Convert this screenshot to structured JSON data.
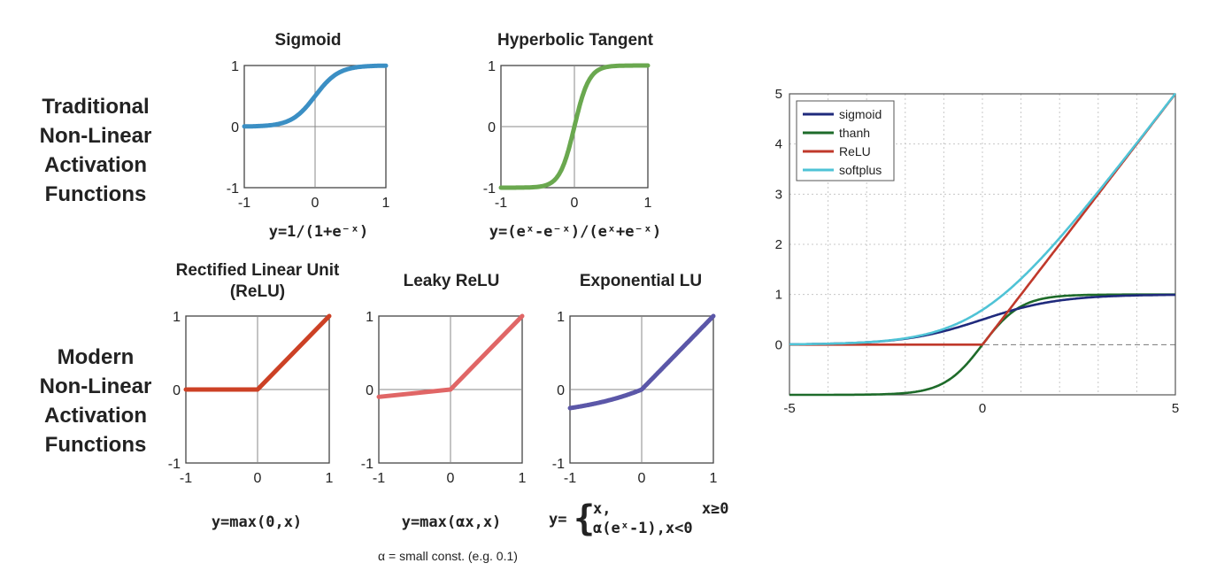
{
  "row_labels": {
    "traditional": [
      "Traditional",
      "Non-Linear",
      "Activation",
      "Functions"
    ],
    "modern": [
      "Modern",
      "Non-Linear",
      "Activation",
      "Functions"
    ]
  },
  "colors": {
    "sigmoid": "#3b8fc4",
    "tanh": "#6aa84f",
    "relu": "#cc4125",
    "leaky": "#e06666",
    "elu": "#5b57a8",
    "cmp_sigmoid": "#1f2a7c",
    "cmp_tanh": "#1e6b2a",
    "cmp_relu": "#c0392b",
    "cmp_softplus": "#4fc3d6"
  },
  "chart_data": [
    {
      "id": "sigmoid",
      "type": "line",
      "title": "Sigmoid",
      "formula": "y=1/(1+e⁻ˣ)",
      "xlim": [
        -1,
        1
      ],
      "ylim": [
        -1,
        1
      ],
      "x_ticks": [
        "-1",
        "0",
        "1"
      ],
      "y_ticks": [
        "1",
        "0",
        "-1"
      ],
      "series": [
        {
          "function": "sigmoid",
          "color_key": "sigmoid"
        }
      ]
    },
    {
      "id": "tanh",
      "type": "line",
      "title": "Hyperbolic Tangent",
      "formula": "y=(eˣ-e⁻ˣ)/(eˣ+e⁻ˣ)",
      "xlim": [
        -1,
        1
      ],
      "ylim": [
        -1,
        1
      ],
      "x_ticks": [
        "-1",
        "0",
        "1"
      ],
      "y_ticks": [
        "1",
        "0",
        "-1"
      ],
      "series": [
        {
          "function": "tanh",
          "color_key": "tanh"
        }
      ]
    },
    {
      "id": "relu",
      "type": "line",
      "title": "Rectified Linear Unit",
      "title2": "(ReLU)",
      "formula": "y=max(0,x)",
      "xlim": [
        -1,
        1
      ],
      "ylim": [
        -1,
        1
      ],
      "x_ticks": [
        "-1",
        "0",
        "1"
      ],
      "y_ticks": [
        "1",
        "0",
        "-1"
      ],
      "series": [
        {
          "function": "relu",
          "color_key": "relu",
          "points": [
            [
              -1,
              0
            ],
            [
              0,
              0
            ],
            [
              1,
              1
            ]
          ]
        }
      ]
    },
    {
      "id": "leaky",
      "type": "line",
      "title": "Leaky ReLU",
      "formula": "y=max(αx,x)",
      "note": "α = small const. (e.g. 0.1)",
      "xlim": [
        -1,
        1
      ],
      "ylim": [
        -1,
        1
      ],
      "x_ticks": [
        "-1",
        "0",
        "1"
      ],
      "y_ticks": [
        "1",
        "0",
        "-1"
      ],
      "series": [
        {
          "function": "leaky_relu",
          "alpha": 0.1,
          "color_key": "leaky",
          "points": [
            [
              -1,
              -0.1
            ],
            [
              0,
              0
            ],
            [
              1,
              1
            ]
          ]
        }
      ]
    },
    {
      "id": "elu",
      "type": "line",
      "title": "Exponential LU",
      "formula_prefix": "y=",
      "formula_cases": [
        "x,          x≥0",
        "α(eˣ-1),x<0"
      ],
      "xlim": [
        -1,
        1
      ],
      "ylim": [
        -1,
        1
      ],
      "x_ticks": [
        "-1",
        "0",
        "1"
      ],
      "y_ticks": [
        "1",
        "0",
        "-1"
      ],
      "series": [
        {
          "function": "elu",
          "alpha": 0.4,
          "color_key": "elu"
        }
      ]
    },
    {
      "id": "compare",
      "type": "line",
      "xlim": [
        -5,
        5
      ],
      "ylim": [
        -1,
        5
      ],
      "x_ticks": [
        "-5",
        "0",
        "5"
      ],
      "y_ticks": [
        "5",
        "4",
        "3",
        "2",
        "1",
        "0"
      ],
      "grid": true,
      "legend_position": "top-left",
      "series": [
        {
          "name": "sigmoid",
          "function": "sigmoid",
          "color_key": "cmp_sigmoid"
        },
        {
          "name": "thanh",
          "function": "tanh",
          "color_key": "cmp_tanh"
        },
        {
          "name": "ReLU",
          "function": "relu",
          "color_key": "cmp_relu"
        },
        {
          "name": "softplus",
          "function": "softplus",
          "color_key": "cmp_softplus"
        }
      ]
    }
  ]
}
